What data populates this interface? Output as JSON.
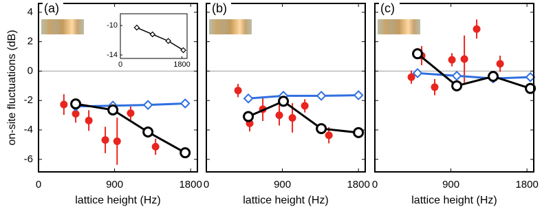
{
  "chart_data": [
    {
      "type": "line",
      "title": "(a)",
      "ylabel": "on-site fluctuations (dB)",
      "xlabel": "lattice height (Hz)",
      "xlim": [
        0,
        1880
      ],
      "ylim": [
        -6.85,
        4.6
      ],
      "xticks": [
        0,
        900,
        1800
      ],
      "yticks": [
        -6,
        -4,
        -2,
        0,
        2,
        4
      ],
      "reference_line": 0,
      "series": [
        {
          "color": "#e8251f",
          "marker": "dot",
          "x": [
            300,
            440,
            595,
            790,
            930,
            1090,
            1385
          ],
          "values": [
            -2.27,
            -2.9,
            -3.36,
            -4.68,
            -4.77,
            -2.86,
            -5.14
          ],
          "errors": [
            0.7,
            0.6,
            0.7,
            0.9,
            1.6,
            0.45,
            0.55
          ]
        },
        {
          "color": "#2f6fe0",
          "marker": "diamond",
          "x": [
            440,
            880,
            1295,
            1735
          ],
          "values": [
            -2.4,
            -2.35,
            -2.3,
            -2.2
          ]
        },
        {
          "color": "#000000",
          "marker": "circle",
          "x": [
            440,
            880,
            1295,
            1735
          ],
          "values": [
            -2.23,
            -2.64,
            -4.14,
            -5.55
          ]
        }
      ],
      "inset": {
        "type": "line",
        "xlim": [
          0,
          1950
        ],
        "ylim": [
          -14.47,
          -8.4
        ],
        "xticks": [
          0,
          1800
        ],
        "yticks": [
          -10,
          -14
        ],
        "series": [
          {
            "color": "#000000",
            "marker": "diamond",
            "x": [
              480,
              940,
              1400,
              1840
            ],
            "values": [
              -10.28,
              -11.2,
              -12.1,
              -13.35
            ]
          }
        ]
      }
    },
    {
      "type": "line",
      "title": "(b)",
      "xlabel": "lattice height (Hz)",
      "xlim": [
        0,
        1880
      ],
      "ylim": [
        -6.85,
        4.6
      ],
      "xticks": [
        0,
        900,
        1800
      ],
      "yticks": [
        -6,
        -4,
        -2,
        0,
        2,
        4
      ],
      "reference_line": 0,
      "series": [
        {
          "color": "#e8251f",
          "marker": "dot",
          "x": [
            375,
            513,
            668,
            863,
            1018,
            1165,
            1450
          ],
          "values": [
            -1.32,
            -3.55,
            -2.59,
            -3.0,
            -3.18,
            -2.36,
            -4.36
          ],
          "errors": [
            0.45,
            0.55,
            0.8,
            0.7,
            1.0,
            0.45,
            0.55
          ]
        },
        {
          "color": "#2f6fe0",
          "marker": "diamond",
          "x": [
            497,
            912,
            1360,
            1800
          ],
          "values": [
            -1.86,
            -1.68,
            -1.68,
            -1.64
          ]
        },
        {
          "color": "#000000",
          "marker": "circle",
          "x": [
            497,
            912,
            1360,
            1800
          ],
          "values": [
            -3.09,
            -2.05,
            -3.91,
            -4.18
          ]
        }
      ]
    },
    {
      "type": "line",
      "title": "(c)",
      "xlabel": "lattice height (Hz)",
      "xlim": [
        0,
        1880
      ],
      "ylim": [
        -6.85,
        4.6
      ],
      "xticks": [
        0,
        900,
        1800
      ],
      "yticks": [
        -6,
        -4,
        -2,
        0,
        2,
        4
      ],
      "reference_line": 0,
      "series": [
        {
          "color": "#e8251f",
          "marker": "dot",
          "x": [
            432,
            554,
            708,
            912,
            1059,
            1205,
            1482
          ],
          "values": [
            -0.41,
            1.05,
            -1.09,
            0.77,
            0.82,
            2.86,
            0.5
          ],
          "errors": [
            0.45,
            0.65,
            0.55,
            0.45,
            1.6,
            0.65,
            0.55
          ]
        },
        {
          "color": "#2f6fe0",
          "marker": "diamond",
          "x": [
            505,
            969,
            1400,
            1840
          ],
          "values": [
            -0.14,
            -0.32,
            -0.5,
            -0.41
          ]
        },
        {
          "color": "#000000",
          "marker": "circle",
          "x": [
            505,
            969,
            1400,
            1840
          ],
          "values": [
            1.18,
            -1.0,
            -0.36,
            -1.18
          ]
        }
      ]
    }
  ]
}
